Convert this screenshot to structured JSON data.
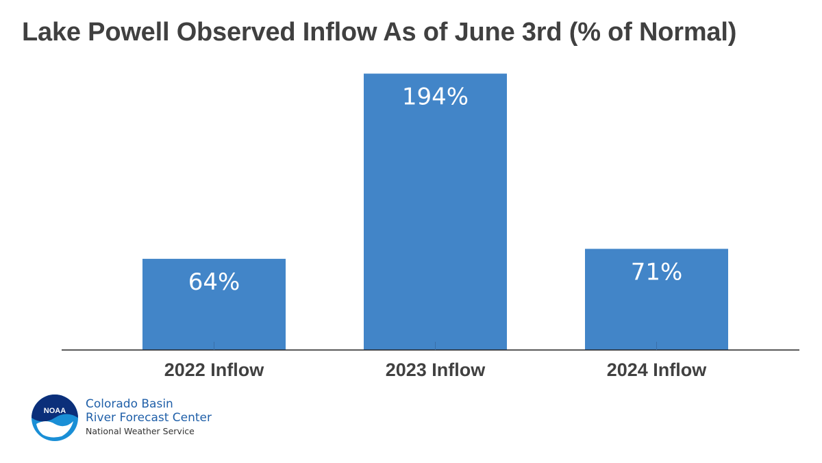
{
  "chart_data": {
    "type": "bar",
    "title": "Lake Powell Observed Inflow As of June 3rd (% of Normal)",
    "categories": [
      "2022 Inflow",
      "2023 Inflow",
      "2024 Inflow"
    ],
    "values": [
      64,
      194,
      71
    ],
    "data_labels": [
      "64%",
      "194%",
      "71%"
    ],
    "ylim": [
      0,
      200
    ],
    "grid": false,
    "bar_color": "#4285c8"
  },
  "branding": {
    "logo_text": "NOAA",
    "line1": "Colorado Basin",
    "line2": "River Forecast Center",
    "line3": "National Weather Service"
  }
}
